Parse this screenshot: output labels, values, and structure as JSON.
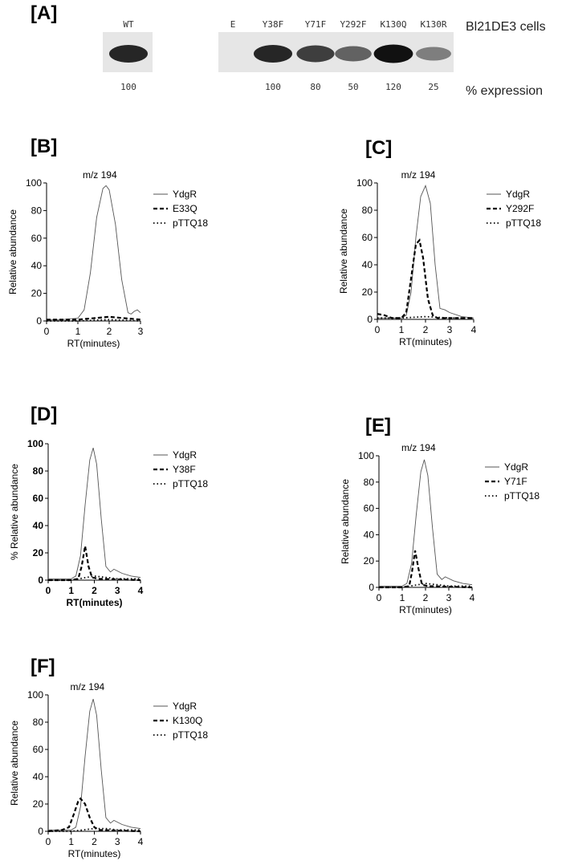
{
  "blot": {
    "panel": "[A]",
    "lanes": [
      "WT",
      "E",
      "Y38F",
      "Y71F",
      "Y292F",
      "K130Q",
      "K130R"
    ],
    "expression": [
      100,
      null,
      100,
      80,
      50,
      120,
      25
    ],
    "row_label": "Bl21DE3 cells",
    "expression_label": "% expression"
  },
  "chart_data": [
    {
      "type": "line",
      "panel": "[B]",
      "annotation": "m/z 194",
      "ylabel": "Relative abundance",
      "xlabel": "RT(minutes)",
      "xlim": [
        0,
        3
      ],
      "xticks": [
        0,
        1,
        2,
        3
      ],
      "ylim": [
        0,
        100
      ],
      "yticks": [
        0,
        20,
        40,
        60,
        80,
        100
      ],
      "series": [
        {
          "name": "YdgR",
          "color": "#555555",
          "style": "solid",
          "x": [
            0,
            0.5,
            1.0,
            1.2,
            1.4,
            1.6,
            1.8,
            1.9,
            2.0,
            2.2,
            2.4,
            2.6,
            2.7,
            2.8,
            2.9,
            3.0
          ],
          "values": [
            1,
            1,
            2,
            8,
            35,
            75,
            96,
            98,
            95,
            70,
            30,
            6,
            5,
            7,
            8,
            6
          ]
        },
        {
          "name": "E33Q",
          "color": "#000000",
          "style": "dashed",
          "x": [
            0,
            1,
            1.5,
            2,
            2.5,
            3
          ],
          "values": [
            1,
            1,
            2,
            3,
            2,
            1
          ]
        },
        {
          "name": "pTTQ18",
          "color": "#000000",
          "style": "dotted",
          "x": [
            0,
            1,
            2,
            3
          ],
          "values": [
            0,
            0,
            1,
            0
          ]
        }
      ]
    },
    {
      "type": "line",
      "panel": "[C]",
      "annotation": "m/z 194",
      "ylabel": "Relative abundance",
      "xlabel": "RT(minutes)",
      "xlim": [
        0,
        4
      ],
      "xticks": [
        0,
        1,
        2,
        3,
        4
      ],
      "ylim": [
        0,
        100
      ],
      "yticks": [
        0,
        20,
        40,
        60,
        80,
        100
      ],
      "series": [
        {
          "name": "YdgR",
          "color": "#555555",
          "style": "solid",
          "x": [
            0,
            0.5,
            1,
            1.2,
            1.4,
            1.6,
            1.8,
            2.0,
            2.2,
            2.4,
            2.6,
            2.8,
            3.0,
            3.5,
            4
          ],
          "values": [
            1,
            1,
            1,
            3,
            20,
            60,
            90,
            98,
            85,
            40,
            8,
            7,
            5,
            2,
            1
          ]
        },
        {
          "name": "Y292F",
          "color": "#000000",
          "style": "dashed",
          "x": [
            0,
            0.3,
            0.6,
            1.0,
            1.2,
            1.4,
            1.6,
            1.75,
            1.9,
            2.1,
            2.3,
            2.5,
            3,
            4
          ],
          "values": [
            4,
            3,
            1,
            1,
            5,
            30,
            55,
            58,
            45,
            15,
            3,
            1,
            1,
            1
          ]
        },
        {
          "name": "pTTQ18",
          "color": "#000000",
          "style": "dotted",
          "x": [
            0,
            1,
            2,
            3,
            4
          ],
          "values": [
            1,
            1,
            2,
            1,
            1
          ]
        }
      ]
    },
    {
      "type": "line",
      "panel": "[D]",
      "ylabel": "% Relative abundance",
      "xlabel": "RT(minutes)",
      "xlim": [
        0,
        4
      ],
      "xticks": [
        0,
        1,
        2,
        3,
        4
      ],
      "ylim": [
        0,
        100
      ],
      "yticks": [
        0,
        20,
        40,
        60,
        80,
        100
      ],
      "series": [
        {
          "name": "YdgR",
          "color": "#555555",
          "style": "solid",
          "x": [
            0,
            0.5,
            1,
            1.2,
            1.4,
            1.6,
            1.8,
            1.95,
            2.1,
            2.3,
            2.5,
            2.7,
            2.85,
            3.2,
            3.6,
            4
          ],
          "values": [
            1,
            1,
            1,
            3,
            18,
            55,
            88,
            97,
            85,
            45,
            10,
            6,
            8,
            5,
            3,
            2
          ]
        },
        {
          "name": "Y38F",
          "color": "#000000",
          "style": "dashed",
          "x": [
            0,
            1,
            1.3,
            1.45,
            1.6,
            1.75,
            1.9,
            2.2,
            4
          ],
          "values": [
            0,
            0,
            1,
            10,
            25,
            10,
            2,
            1,
            0
          ]
        },
        {
          "name": "pTTQ18",
          "color": "#000000",
          "style": "dotted",
          "x": [
            0,
            1,
            2,
            2.5,
            3,
            4
          ],
          "values": [
            0,
            0,
            3,
            2,
            1,
            1
          ]
        }
      ]
    },
    {
      "type": "line",
      "panel": "[E]",
      "annotation": "m/z 194",
      "ylabel": "Relative abundance",
      "xlabel": "RT(minutes)",
      "xlim": [
        0,
        4
      ],
      "xticks": [
        0,
        1,
        2,
        3,
        4
      ],
      "ylim": [
        0,
        100
      ],
      "yticks": [
        0,
        20,
        40,
        60,
        80,
        100
      ],
      "series": [
        {
          "name": "YdgR",
          "color": "#555555",
          "style": "solid",
          "x": [
            0,
            0.5,
            1,
            1.2,
            1.4,
            1.6,
            1.8,
            1.95,
            2.1,
            2.3,
            2.5,
            2.7,
            2.85,
            3.2,
            3.6,
            4
          ],
          "values": [
            1,
            1,
            1,
            3,
            18,
            55,
            88,
            97,
            85,
            45,
            10,
            6,
            8,
            5,
            3,
            2
          ]
        },
        {
          "name": "Y71F",
          "color": "#000000",
          "style": "dashed",
          "x": [
            0,
            1,
            1.3,
            1.42,
            1.55,
            1.7,
            1.85,
            2.1,
            4
          ],
          "values": [
            0,
            0,
            1,
            12,
            28,
            14,
            2,
            1,
            0
          ]
        },
        {
          "name": "pTTQ18",
          "color": "#000000",
          "style": "dotted",
          "x": [
            0,
            1,
            2,
            2.5,
            3,
            4
          ],
          "values": [
            0,
            0,
            3,
            2,
            1,
            1
          ]
        }
      ]
    },
    {
      "type": "line",
      "panel": "[F]",
      "annotation": "m/z 194",
      "ylabel": "Relative abundance",
      "xlabel": "RT(minutes)",
      "xlim": [
        0,
        4
      ],
      "xticks": [
        0,
        1,
        2,
        3,
        4
      ],
      "ylim": [
        0,
        100
      ],
      "yticks": [
        0,
        20,
        40,
        60,
        80,
        100
      ],
      "series": [
        {
          "name": "YdgR",
          "color": "#555555",
          "style": "solid",
          "x": [
            0,
            0.5,
            1,
            1.2,
            1.4,
            1.6,
            1.8,
            1.95,
            2.1,
            2.3,
            2.5,
            2.7,
            2.85,
            3.2,
            3.6,
            4
          ],
          "values": [
            1,
            1,
            1,
            3,
            18,
            55,
            88,
            97,
            85,
            45,
            10,
            6,
            8,
            5,
            3,
            2
          ]
        },
        {
          "name": "K130Q",
          "color": "#000000",
          "style": "dashed",
          "x": [
            0,
            0.6,
            0.9,
            1.1,
            1.3,
            1.4,
            1.6,
            1.8,
            2.0,
            2.2,
            4
          ],
          "values": [
            0,
            1,
            3,
            12,
            22,
            24,
            20,
            10,
            3,
            1,
            0
          ]
        },
        {
          "name": "pTTQ18",
          "color": "#000000",
          "style": "dotted",
          "x": [
            0,
            1,
            2,
            2.5,
            3,
            4
          ],
          "values": [
            0,
            0,
            2,
            2,
            1,
            1
          ]
        }
      ]
    }
  ]
}
